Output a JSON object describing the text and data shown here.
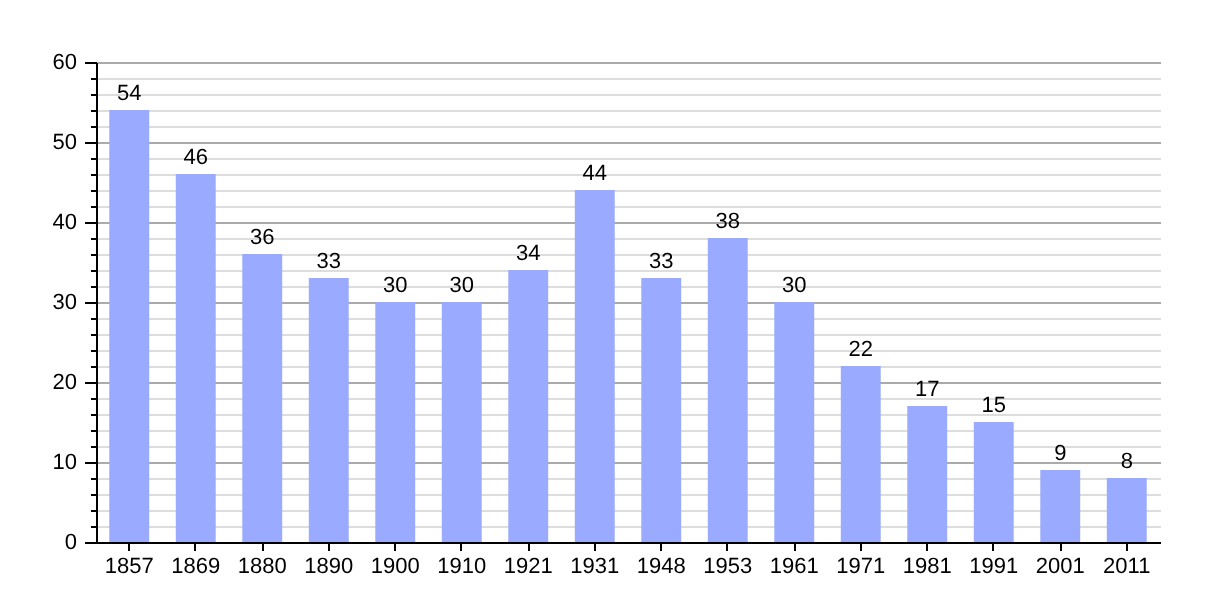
{
  "chart_data": {
    "type": "bar",
    "categories": [
      "1857",
      "1869",
      "1880",
      "1890",
      "1900",
      "1910",
      "1921",
      "1931",
      "1948",
      "1953",
      "1961",
      "1971",
      "1981",
      "1991",
      "2001",
      "2011"
    ],
    "values": [
      54,
      46,
      36,
      33,
      30,
      30,
      34,
      44,
      33,
      38,
      30,
      22,
      17,
      15,
      9,
      8
    ],
    "color": "#99aaff",
    "ylim": [
      0,
      60
    ],
    "yticks": [
      0,
      {
        "value": 2,
        "label": null
      },
      {
        "value": 4,
        "label": null
      },
      {
        "value": 6,
        "label": null
      },
      {
        "value": 8,
        "label": null
      },
      10,
      {
        "value": 12,
        "label": null
      },
      {
        "value": 14,
        "label": null
      },
      {
        "value": 16,
        "label": null
      },
      {
        "value": 18,
        "label": null
      },
      20,
      {
        "value": 22,
        "label": null
      },
      {
        "value": 24,
        "label": null
      },
      {
        "value": 26,
        "label": null
      },
      {
        "value": 28,
        "label": null
      },
      30,
      {
        "value": 32,
        "label": null
      },
      {
        "value": 34,
        "label": null
      },
      {
        "value": 36,
        "label": null
      },
      {
        "value": 38,
        "label": null
      },
      40,
      {
        "value": 42,
        "label": null
      },
      {
        "value": 44,
        "label": null
      },
      {
        "value": 46,
        "label": null
      },
      {
        "value": 48,
        "label": null
      },
      50,
      {
        "value": 52,
        "label": null
      },
      {
        "value": 54,
        "label": null
      },
      {
        "value": 56,
        "label": null
      },
      {
        "value": 58,
        "label": null
      },
      60
    ],
    "grid": true,
    "data_labels": true
  }
}
